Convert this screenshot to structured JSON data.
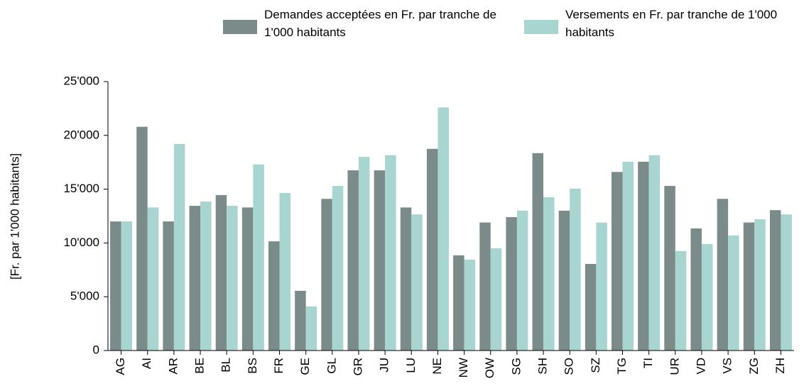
{
  "chart_data": {
    "type": "bar",
    "y_label": "[Fr. par 1'000 habitants]",
    "categories": [
      "AG",
      "AI",
      "AR",
      "BE",
      "BL",
      "BS",
      "FR",
      "GE",
      "GL",
      "GR",
      "JU",
      "LU",
      "NE",
      "NW",
      "OW",
      "SG",
      "SH",
      "SO",
      "SZ",
      "TG",
      "TI",
      "UR",
      "VD",
      "VS",
      "ZG",
      "ZH"
    ],
    "series": [
      {
        "name": "Demandes acceptées en Fr. par tranche de 1'000 habitants",
        "color": "#7a8b89",
        "values": [
          12000,
          20800,
          12000,
          13450,
          14450,
          13300,
          10150,
          5550,
          14100,
          16750,
          16750,
          13300,
          18750,
          8850,
          11900,
          12400,
          18350,
          13000,
          8050,
          16600,
          17550,
          15300,
          11350,
          14100,
          11900,
          13050
        ]
      },
      {
        "name": "Versements en Fr. par tranche de 1'000 habitants",
        "color": "#a9d5d0",
        "values": [
          12000,
          13300,
          19200,
          13850,
          13450,
          17300,
          14650,
          4100,
          15300,
          18000,
          18150,
          12650,
          22600,
          8450,
          9500,
          13000,
          14250,
          15050,
          11900,
          17550,
          18150,
          9250,
          9900,
          10700,
          12200,
          12650
        ]
      }
    ],
    "ylim": [
      0,
      25000
    ],
    "yticks": [
      0,
      {
        "value": 5000,
        "label": "5'000"
      },
      {
        "value": 10000,
        "label": "10'000"
      },
      {
        "value": 15000,
        "label": "15'000"
      },
      {
        "value": 20000,
        "label": "20'000"
      },
      {
        "value": 25000,
        "label": "25'000"
      }
    ],
    "grid": false
  }
}
